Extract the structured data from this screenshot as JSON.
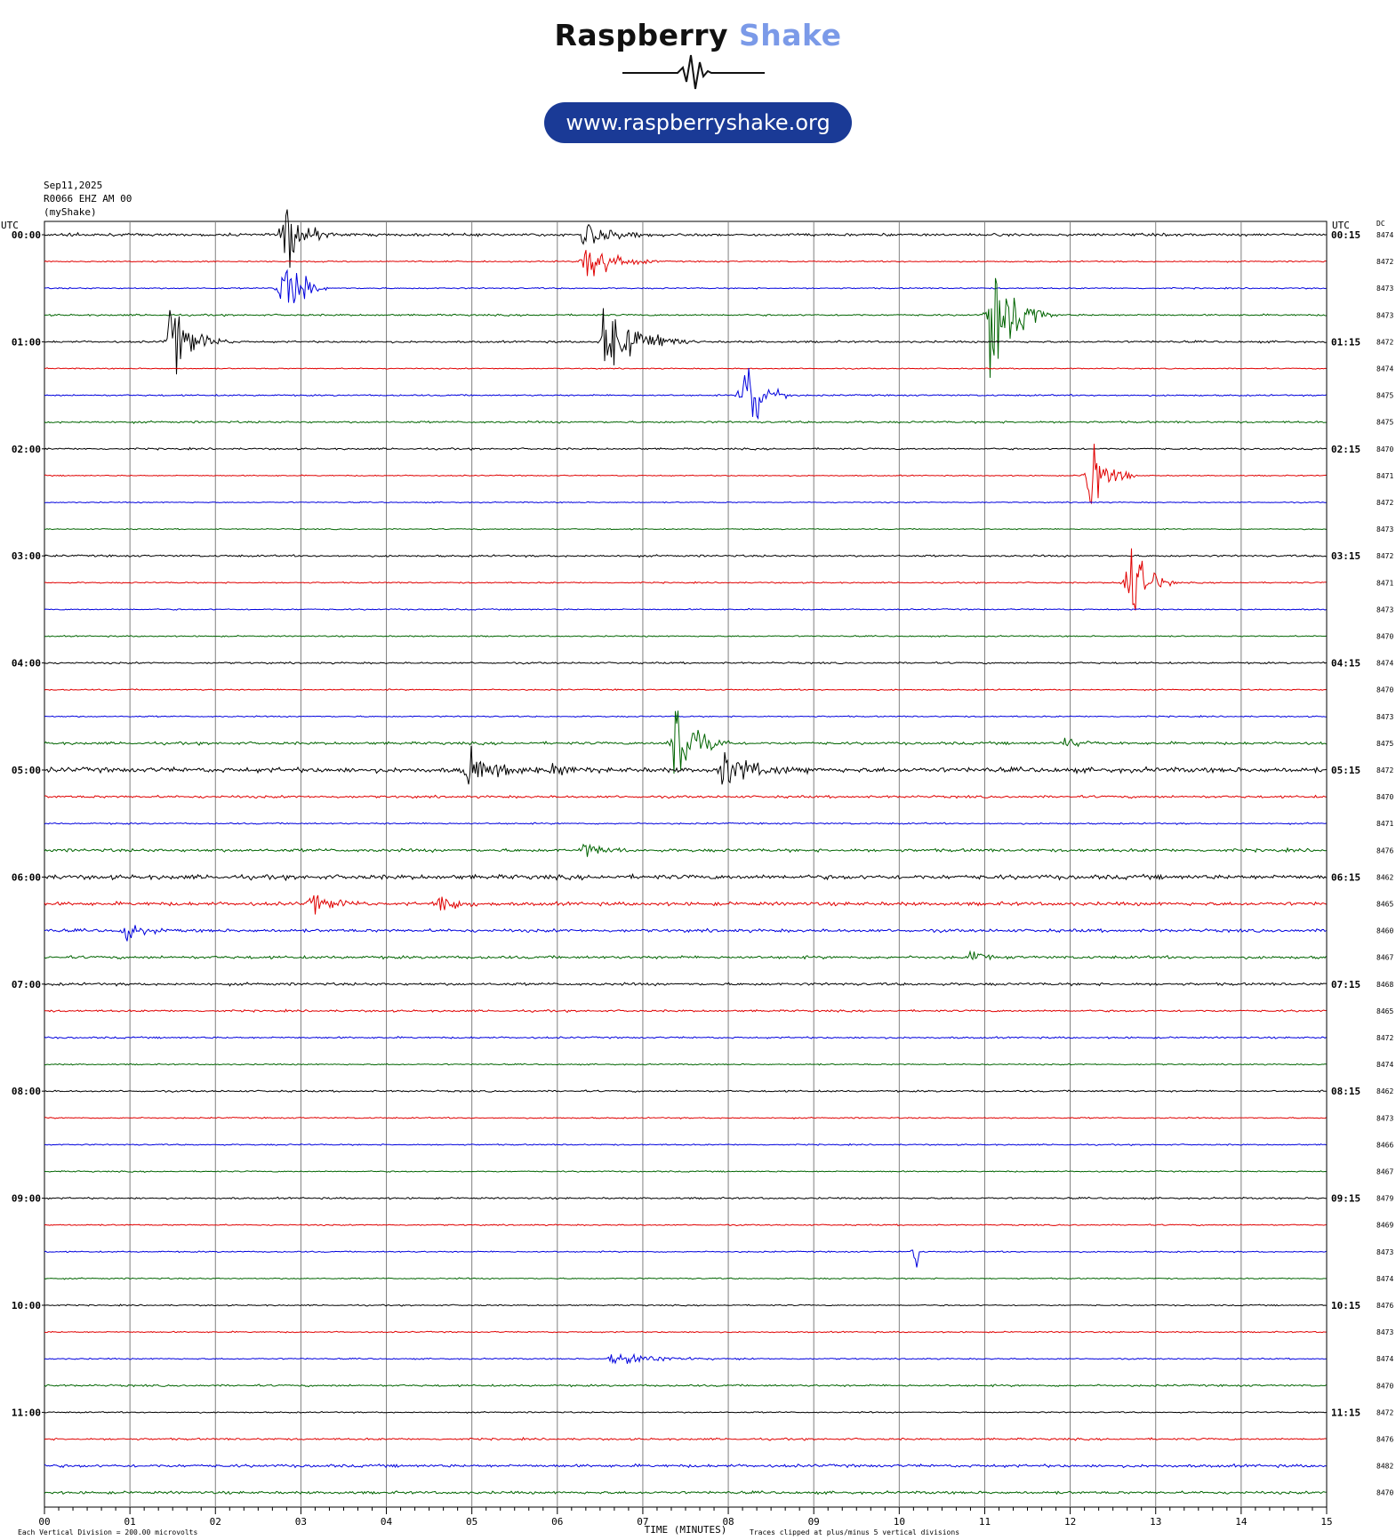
{
  "header": {
    "brand_part1": "Raspberry",
    "brand_part2": "Shake",
    "website": "www.raspberryshake.org",
    "date": "Sep11,2025",
    "station": "R0066 EHZ AM 00",
    "network": "(myShake)"
  },
  "colors": {
    "trace_cycle": [
      "#000000",
      "#e00000",
      "#0000dd",
      "#006400"
    ],
    "brand_accent": "#7b9ae8",
    "pill": "#1a3a96"
  },
  "chart_data": {
    "type": "helicorder",
    "left_axis_title": "UTC",
    "right_axis_title": "UTC",
    "dc_title": "DC",
    "xlabel": "TIME (MINUTES)",
    "x_ticks": [
      "00",
      "01",
      "02",
      "03",
      "04",
      "05",
      "06",
      "07",
      "08",
      "09",
      "10",
      "11",
      "12",
      "13",
      "14",
      "15"
    ],
    "xlim": [
      0,
      15
    ],
    "footer_left": "Each Vertical Division =  200.00 microvolts",
    "footer_right": "Traces clipped at plus/minus 5 vertical divisions",
    "hour_labels_left": [
      "00:00",
      "01:00",
      "02:00",
      "03:00",
      "04:00",
      "05:00",
      "06:00",
      "07:00",
      "08:00",
      "09:00",
      "10:00",
      "11:00"
    ],
    "hour_labels_right": [
      "00:15",
      "01:15",
      "02:15",
      "03:15",
      "04:15",
      "05:15",
      "06:15",
      "07:15",
      "08:15",
      "09:15",
      "10:15",
      "11:15"
    ],
    "dc_values": [
      8474,
      8472,
      8473,
      8473,
      8472,
      8474,
      8475,
      8475,
      8470,
      8471,
      8472,
      8473,
      8472,
      8471,
      8473,
      8470,
      8474,
      8470,
      8473,
      8475,
      8472,
      8470,
      8471,
      8476,
      8462,
      8465,
      8460,
      8467,
      8468,
      8465,
      8472,
      8474,
      8462,
      8473,
      8466,
      8467,
      8479,
      8469,
      8473,
      8474,
      8476,
      8473,
      8474,
      8470,
      8472,
      8476,
      8482,
      8470
    ],
    "noise_level": [
      1.2,
      0.6,
      0.6,
      0.8,
      0.9,
      0.5,
      0.7,
      0.9,
      0.8,
      0.5,
      0.5,
      0.5,
      0.9,
      0.6,
      0.6,
      0.6,
      0.8,
      0.6,
      0.6,
      1.2,
      2.2,
      1.1,
      0.7,
      1.4,
      2.0,
      1.6,
      1.4,
      1.3,
      1.2,
      0.9,
      0.8,
      0.6,
      0.8,
      0.6,
      0.6,
      0.6,
      0.8,
      0.6,
      0.6,
      0.6,
      0.6,
      0.6,
      0.6,
      0.9,
      0.6,
      0.9,
      1.3,
      1.2
    ],
    "events": [
      {
        "row": 0,
        "minute": 0.25,
        "amp": 8,
        "duration": 0.35
      },
      {
        "row": 0,
        "minute": 2.75,
        "amp": 95,
        "duration": 0.7
      },
      {
        "row": 0,
        "minute": 6.25,
        "amp": 40,
        "duration": 1.0
      },
      {
        "row": 1,
        "minute": 6.3,
        "amp": 70,
        "duration": 0.9
      },
      {
        "row": 2,
        "minute": 2.75,
        "amp": 120,
        "duration": 0.6
      },
      {
        "row": 3,
        "minute": 11.05,
        "amp": 150,
        "duration": 0.8
      },
      {
        "row": 4,
        "minute": 1.45,
        "amp": 80,
        "duration": 0.8
      },
      {
        "row": 4,
        "minute": 6.5,
        "amp": 90,
        "duration": 1.2
      },
      {
        "row": 6,
        "minute": 8.15,
        "amp": 140,
        "duration": 0.6
      },
      {
        "row": 9,
        "minute": 12.2,
        "amp": 105,
        "duration": 0.6
      },
      {
        "row": 13,
        "minute": 12.65,
        "amp": 120,
        "duration": 0.6
      },
      {
        "row": 19,
        "minute": 7.35,
        "amp": 150,
        "duration": 0.7
      },
      {
        "row": 19,
        "minute": 11.9,
        "amp": 20,
        "duration": 0.8
      },
      {
        "row": 20,
        "minute": 4.9,
        "amp": 45,
        "duration": 1.2
      },
      {
        "row": 20,
        "minute": 5.9,
        "amp": 25,
        "duration": 0.6
      },
      {
        "row": 20,
        "minute": 7.9,
        "amp": 45,
        "duration": 1.2
      },
      {
        "row": 23,
        "minute": 6.3,
        "amp": 25,
        "duration": 0.6
      },
      {
        "row": 25,
        "minute": 3.1,
        "amp": 22,
        "duration": 1.0
      },
      {
        "row": 25,
        "minute": 4.6,
        "amp": 30,
        "duration": 0.7
      },
      {
        "row": 26,
        "minute": 0.9,
        "amp": 22,
        "duration": 0.8
      },
      {
        "row": 27,
        "minute": 10.8,
        "amp": 18,
        "duration": 0.5
      },
      {
        "row": 38,
        "minute": 10.2,
        "amp": 160,
        "duration": 0.05
      },
      {
        "row": 42,
        "minute": 6.6,
        "amp": 15,
        "duration": 1.8
      }
    ]
  }
}
